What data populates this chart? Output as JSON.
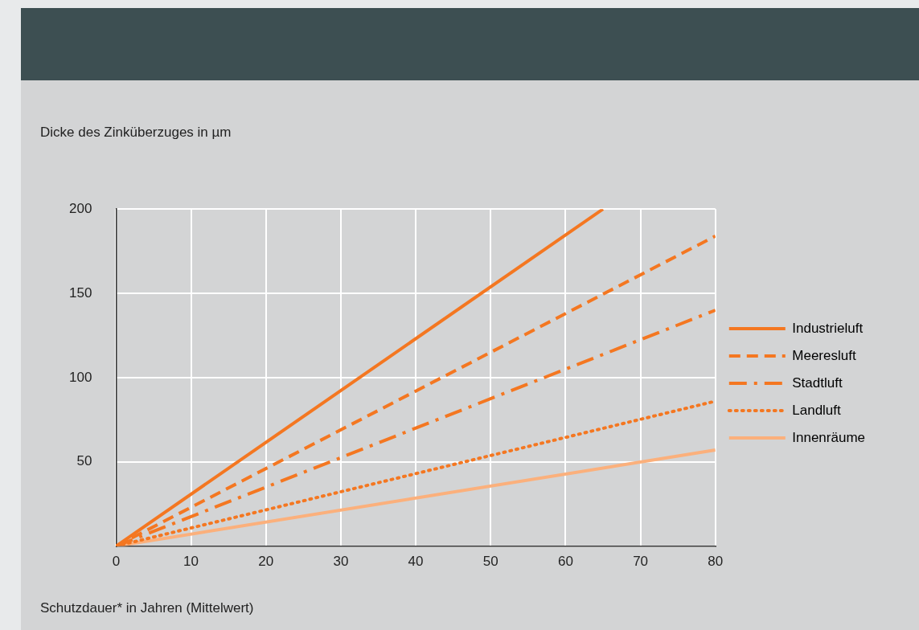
{
  "chart_data": {
    "type": "line",
    "ylabel": "Dicke des Zinküberzuges in µm",
    "xlabel": "Schutzdauer* in Jahren (Mittelwert)",
    "xlim": [
      0,
      80
    ],
    "xticks": [
      0,
      10,
      20,
      30,
      40,
      50,
      60,
      70,
      80
    ],
    "ylim": [
      0,
      200
    ],
    "yticks": [
      {
        "value": 0,
        "label": null
      },
      50,
      100,
      150,
      200
    ],
    "grid": true,
    "legend": "right",
    "marker": "none",
    "series": [
      {
        "name": "Industrieluft",
        "color": "#f47721",
        "line_style": "solid",
        "x": [
          0,
          65
        ],
        "values": [
          0,
          200
        ]
      },
      {
        "name": "Meeresluft",
        "color": "#f47721",
        "line_style": "dashed",
        "x": [
          0,
          80
        ],
        "values": [
          0,
          184
        ]
      },
      {
        "name": "Stadtluft",
        "color": "#f47721",
        "line_style": "dashdot",
        "x": [
          0,
          80
        ],
        "values": [
          0,
          140
        ]
      },
      {
        "name": "Landluft",
        "color": "#f47721",
        "line_style": "dotted",
        "x": [
          0,
          80
        ],
        "values": [
          0,
          86
        ]
      },
      {
        "name": "Innenräume",
        "color": "#fbb07c",
        "line_style": "solid",
        "x": [
          0,
          80
        ],
        "values": [
          0,
          57
        ]
      }
    ]
  }
}
